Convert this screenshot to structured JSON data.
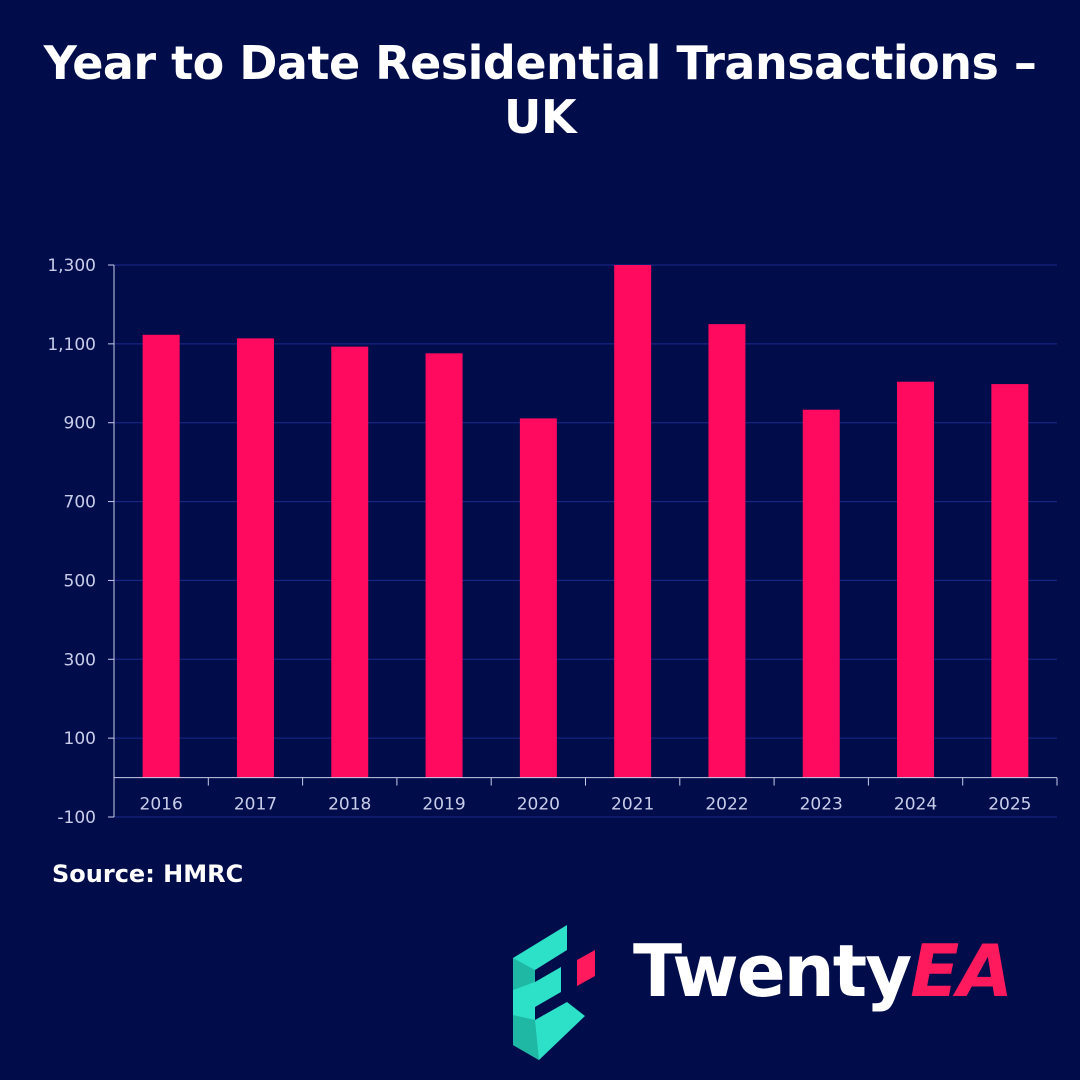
{
  "title": "Year to Date Residential Transactions – UK",
  "source": "Source: HMRC",
  "brand": {
    "name_part1": "Twenty",
    "name_part2": "EA",
    "icon": "twentyea-logo-icon"
  },
  "colors": {
    "background": "#010c4b",
    "bar": "#ff0a5f",
    "grid": "#1b2a8c",
    "axis": "#c8cde8",
    "logo_teal": "#2de0c8",
    "logo_red": "#ff1a5e"
  },
  "chart_data": {
    "type": "bar",
    "title": "Year to Date Residential Transactions – UK",
    "xlabel": "",
    "ylabel": "",
    "categories": [
      "2016",
      "2017",
      "2018",
      "2019",
      "2020",
      "2021",
      "2022",
      "2023",
      "2024",
      "2025"
    ],
    "values": [
      1123,
      1114,
      1093,
      1076,
      911,
      1300,
      1150,
      933,
      1004,
      998
    ],
    "yticks": [
      -100,
      100,
      300,
      500,
      700,
      900,
      1100,
      1300
    ],
    "ytick_labels": [
      "-100",
      "100",
      "300",
      "500",
      "700",
      "900",
      "1,100",
      "1,300"
    ],
    "ylim": [
      -100,
      1300
    ],
    "grid": true,
    "legend": "none"
  }
}
